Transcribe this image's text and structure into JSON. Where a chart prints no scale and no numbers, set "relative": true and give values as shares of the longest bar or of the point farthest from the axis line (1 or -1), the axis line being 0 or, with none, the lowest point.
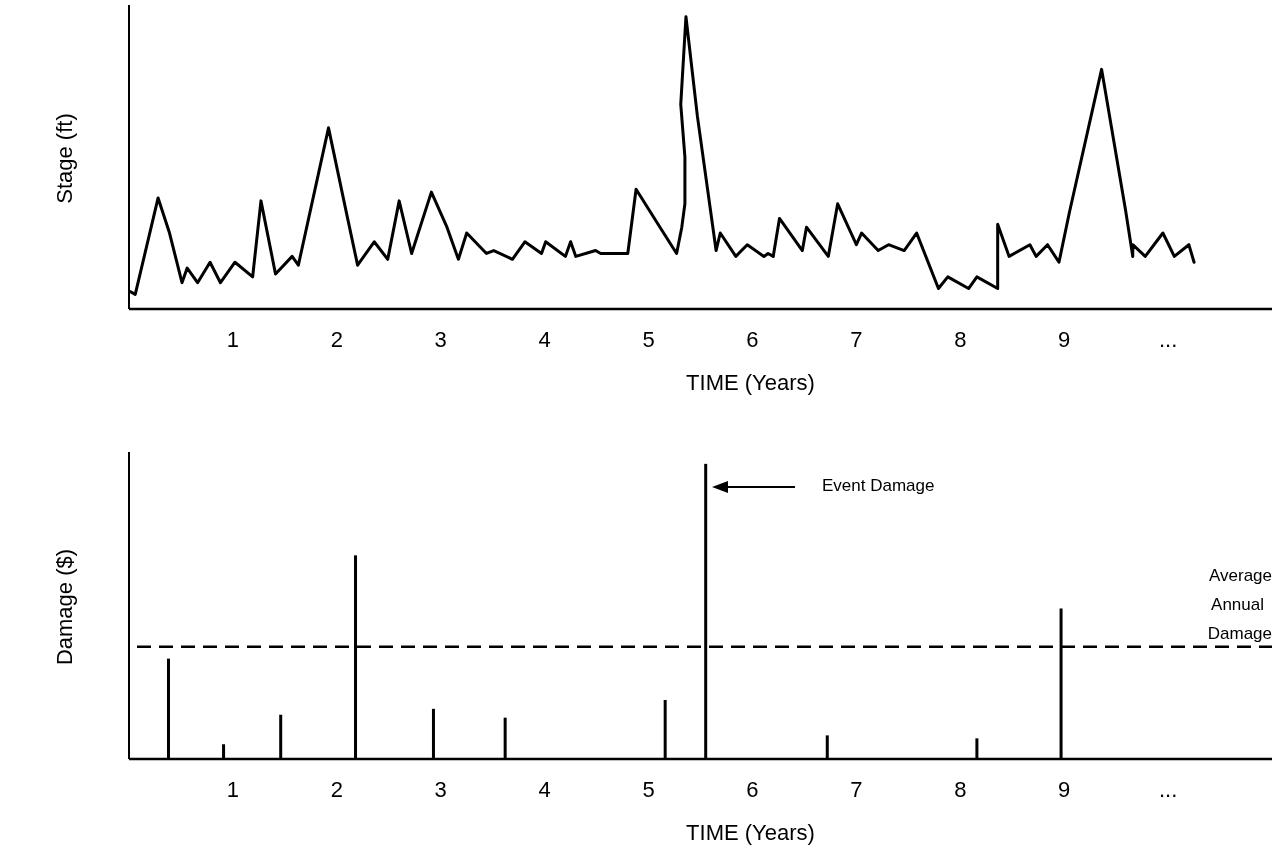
{
  "chart_data": [
    {
      "type": "line",
      "relative": true,
      "xlabel": "TIME (Years)",
      "ylabel": "Stage (ft)",
      "xlim": [
        0,
        11
      ],
      "xticks": [
        1,
        2,
        3,
        4,
        5,
        6,
        7,
        8,
        9,
        {
          "value": 10,
          "label": "..."
        }
      ],
      "series": [
        {
          "color": "#000000",
          "x": [
            0.01,
            0.06,
            0.28,
            0.39,
            0.51,
            0.56,
            0.66,
            0.78,
            0.88,
            1.02,
            1.19,
            1.27,
            1.41,
            1.57,
            1.63,
            1.92,
            2.11,
            2.2,
            2.36,
            2.49,
            2.6,
            2.72,
            2.91,
            3.06,
            3.17,
            3.25,
            3.44,
            3.51,
            3.69,
            3.81,
            3.97,
            4.01,
            4.2,
            4.25,
            4.3,
            4.49,
            4.54,
            4.8,
            4.88,
            5.11,
            5.27,
            5.32,
            5.35,
            5.35,
            5.31,
            5.36,
            5.47,
            5.65,
            5.69,
            5.84,
            5.95,
            6.11,
            6.15,
            6.2,
            6.26,
            6.48,
            6.52,
            6.73,
            6.82,
            7.0,
            7.05,
            7.21,
            7.31,
            7.46,
            7.58,
            7.79,
            7.88,
            8.08,
            8.16,
            8.36,
            8.36,
            8.47,
            8.67,
            8.73,
            8.84,
            8.95,
            9.05,
            9.36,
            9.59,
            9.66,
            9.66,
            9.78,
            9.95,
            10.06,
            10.2,
            10.25
          ],
          "values": [
            0.06,
            0.05,
            0.38,
            0.26,
            0.09,
            0.14,
            0.09,
            0.16,
            0.09,
            0.16,
            0.11,
            0.37,
            0.12,
            0.18,
            0.15,
            0.62,
            0.3,
            0.15,
            0.23,
            0.17,
            0.37,
            0.19,
            0.4,
            0.28,
            0.17,
            0.26,
            0.19,
            0.2,
            0.17,
            0.23,
            0.19,
            0.23,
            0.18,
            0.23,
            0.18,
            0.2,
            0.19,
            0.19,
            0.41,
            0.28,
            0.19,
            0.28,
            0.36,
            0.52,
            0.7,
            1.0,
            0.66,
            0.2,
            0.26,
            0.18,
            0.22,
            0.18,
            0.19,
            0.18,
            0.31,
            0.2,
            0.28,
            0.18,
            0.36,
            0.22,
            0.26,
            0.2,
            0.22,
            0.2,
            0.26,
            0.07,
            0.11,
            0.07,
            0.11,
            0.07,
            0.29,
            0.18,
            0.22,
            0.18,
            0.22,
            0.16,
            0.33,
            0.82,
            0.34,
            0.18,
            0.22,
            0.18,
            0.26,
            0.18,
            0.22,
            0.16
          ]
        }
      ]
    },
    {
      "type": "bar",
      "relative": true,
      "xlabel": "TIME (Years)",
      "ylabel": "Damage ($)",
      "xlim": [
        0,
        11
      ],
      "xticks": [
        1,
        2,
        3,
        4,
        5,
        6,
        7,
        8,
        9,
        {
          "value": 10,
          "label": "..."
        }
      ],
      "x": [
        0.38,
        0.91,
        1.46,
        2.18,
        2.93,
        3.62,
        5.16,
        5.55,
        6.72,
        8.16,
        8.97
      ],
      "series": [
        {
          "color": "#000000",
          "values": [
            0.34,
            0.05,
            0.15,
            0.69,
            0.17,
            0.14,
            0.2,
            1.0,
            0.08,
            0.07,
            0.51
          ]
        }
      ],
      "ref_lines": [
        {
          "axis": "y",
          "value": 0.38,
          "label": "Average Annual Damage",
          "line_style": "dashed",
          "color": "#000000"
        }
      ],
      "annotations": [
        "Event Damage"
      ]
    }
  ]
}
